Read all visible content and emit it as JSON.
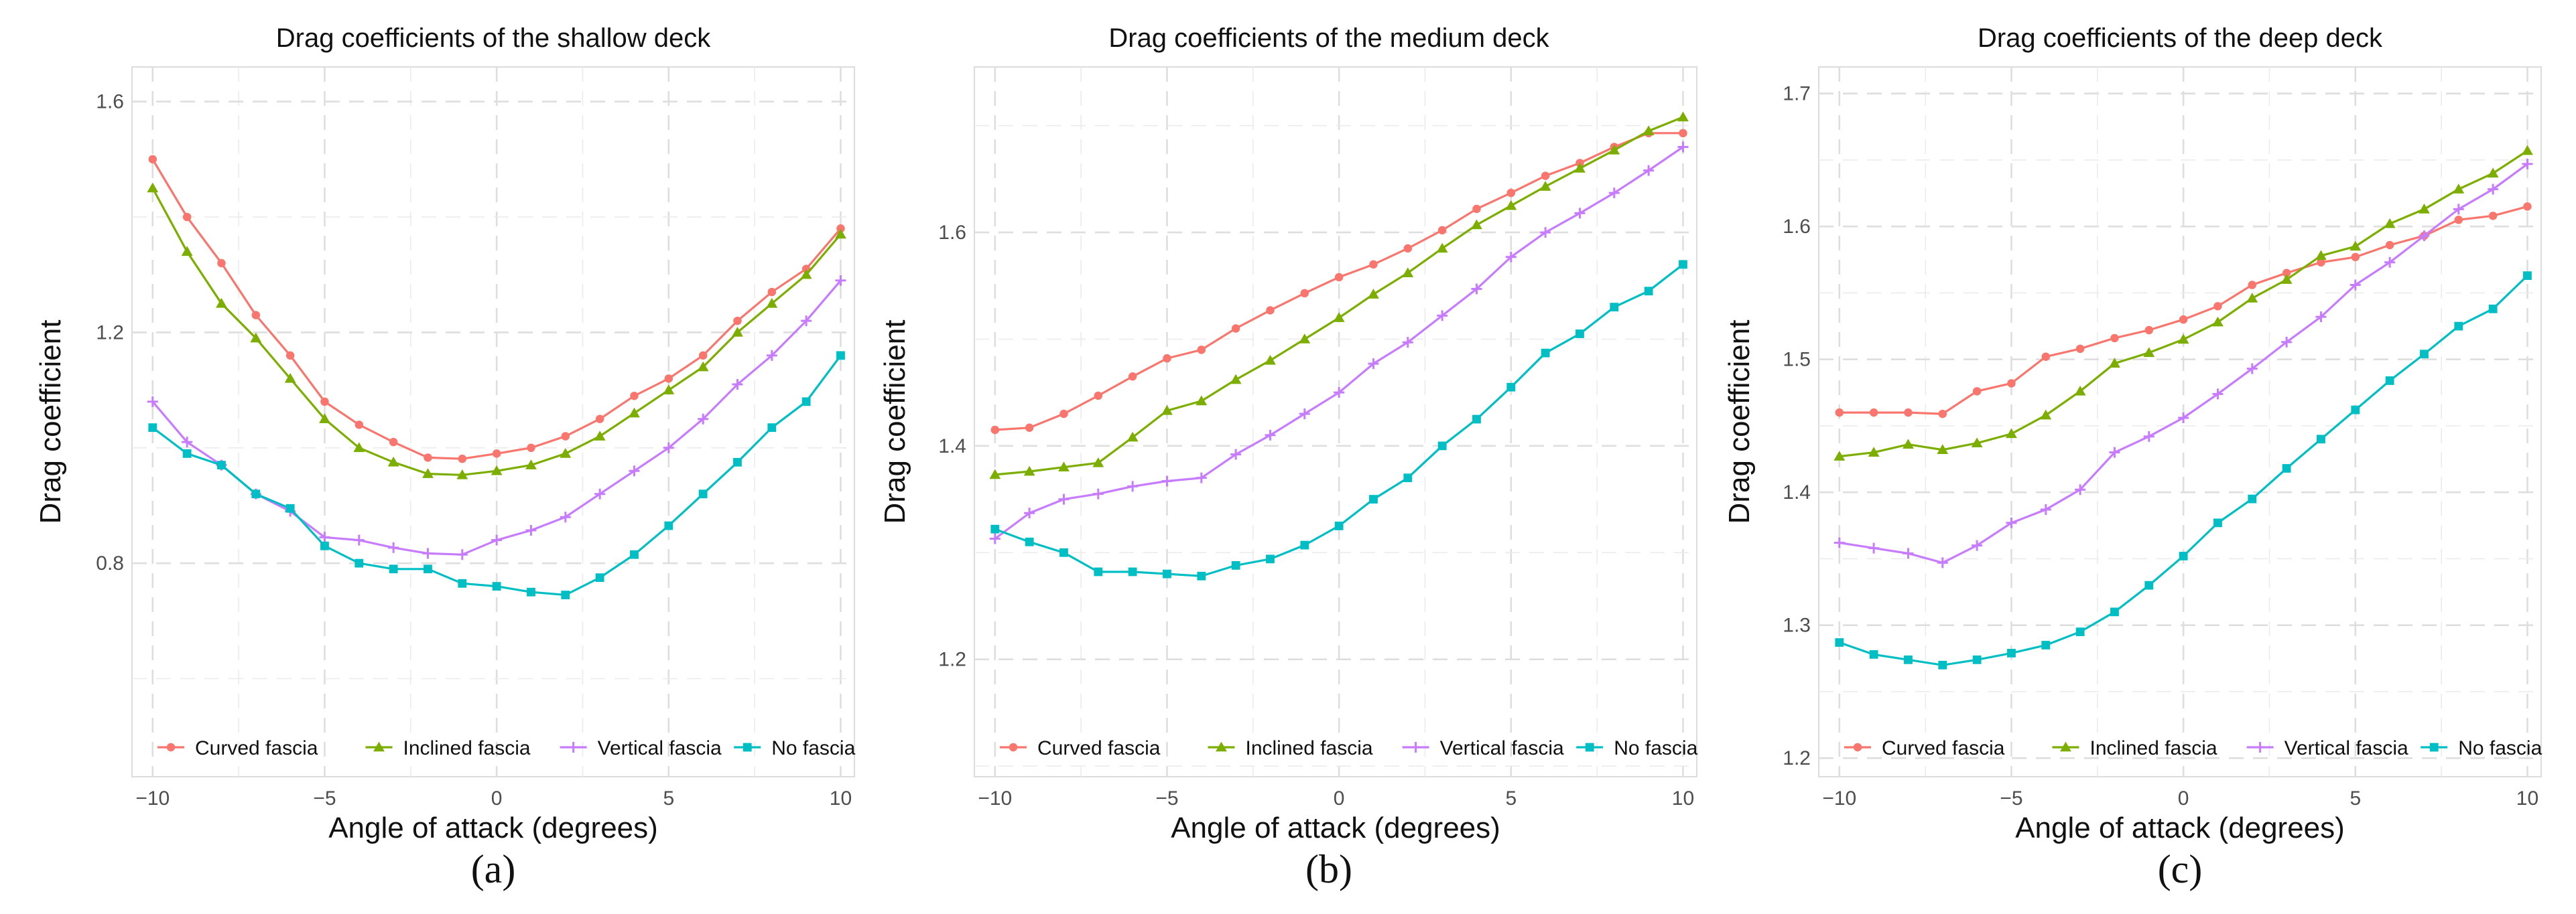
{
  "chart_data": [
    {
      "type": "line",
      "title": "Drag coefficients of the shallow deck",
      "xlabel": "Angle of attack (degrees)",
      "ylabel": "Drag coefficient",
      "sublabel": "(a)",
      "xlim": [
        -10.6,
        10.4
      ],
      "ylim": [
        0.43,
        1.66
      ],
      "xticks": [
        -10,
        -5,
        0,
        5,
        10
      ],
      "xtick_labels": [
        "−10",
        "−5",
        "0",
        "5",
        "10"
      ],
      "yticks": [
        0.8,
        1.2,
        1.6
      ],
      "ytick_labels": [
        "0.8",
        "1.2",
        "1.6"
      ],
      "x": [
        -10,
        -9,
        -8,
        -7,
        -6,
        -5,
        -4,
        -3,
        -2,
        -1,
        0,
        1,
        2,
        3,
        4,
        5,
        6,
        7,
        8,
        9,
        10
      ],
      "series": [
        {
          "name": "Curved fascia",
          "marker": "circle",
          "color": "#F8766D",
          "values": [
            1.5,
            1.4,
            1.32,
            1.23,
            1.16,
            1.08,
            1.04,
            1.01,
            0.983,
            0.981,
            0.99,
            1.0,
            1.02,
            1.05,
            1.09,
            1.12,
            1.16,
            1.22,
            1.27,
            1.31,
            1.38
          ]
        },
        {
          "name": "Inclined fascia",
          "marker": "triangle",
          "color": "#7CAE00",
          "values": [
            1.45,
            1.34,
            1.25,
            1.19,
            1.12,
            1.05,
            1.0,
            0.975,
            0.955,
            0.953,
            0.96,
            0.97,
            0.99,
            1.02,
            1.06,
            1.1,
            1.14,
            1.2,
            1.25,
            1.3,
            1.37
          ]
        },
        {
          "name": "Vertical fascia",
          "marker": "plus",
          "color": "#C77CFF",
          "values": [
            1.08,
            1.01,
            0.97,
            0.92,
            0.89,
            0.845,
            0.84,
            0.827,
            0.817,
            0.815,
            0.84,
            0.857,
            0.88,
            0.92,
            0.96,
            1.0,
            1.05,
            1.11,
            1.16,
            1.22,
            1.29
          ]
        },
        {
          "name": "No fascia",
          "marker": "square",
          "color": "#00BFC4",
          "values": [
            1.035,
            0.99,
            0.97,
            0.92,
            0.895,
            0.83,
            0.8,
            0.79,
            0.79,
            0.765,
            0.76,
            0.75,
            0.745,
            0.775,
            0.815,
            0.865,
            0.92,
            0.975,
            1.035,
            1.08,
            1.16
          ]
        }
      ],
      "legend": {
        "position": "bottom-inside"
      },
      "grid": true
    },
    {
      "type": "line",
      "title": "Drag coefficients of the medium deck",
      "xlabel": "Angle of attack (degrees)",
      "ylabel": "Drag coefficient",
      "sublabel": "(b)",
      "xlim": [
        -10.6,
        10.4
      ],
      "ylim": [
        1.09,
        1.755
      ],
      "xticks": [
        -10,
        -5,
        0,
        5,
        10
      ],
      "xtick_labels": [
        "−10",
        "−5",
        "0",
        "5",
        "10"
      ],
      "yticks": [
        1.2,
        1.4,
        1.6
      ],
      "ytick_labels": [
        "1.2",
        "1.4",
        "1.6"
      ],
      "x": [
        -10,
        -9,
        -8,
        -7,
        -6,
        -5,
        -4,
        -3,
        -2,
        -1,
        0,
        1,
        2,
        3,
        4,
        5,
        6,
        7,
        8,
        9,
        10
      ],
      "series": [
        {
          "name": "Curved fascia",
          "marker": "circle",
          "color": "#F8766D",
          "values": [
            1.415,
            1.417,
            1.43,
            1.447,
            1.465,
            1.482,
            1.49,
            1.51,
            1.527,
            1.543,
            1.558,
            1.57,
            1.585,
            1.602,
            1.622,
            1.637,
            1.653,
            1.665,
            1.68,
            1.693,
            1.693
          ]
        },
        {
          "name": "Inclined fascia",
          "marker": "triangle",
          "color": "#7CAE00",
          "values": [
            1.373,
            1.376,
            1.38,
            1.384,
            1.408,
            1.433,
            1.442,
            1.462,
            1.48,
            1.5,
            1.52,
            1.542,
            1.562,
            1.585,
            1.607,
            1.625,
            1.643,
            1.66,
            1.677,
            1.695,
            1.708
          ]
        },
        {
          "name": "Vertical fascia",
          "marker": "plus",
          "color": "#C77CFF",
          "values": [
            1.313,
            1.337,
            1.35,
            1.355,
            1.362,
            1.367,
            1.37,
            1.392,
            1.41,
            1.43,
            1.45,
            1.477,
            1.497,
            1.522,
            1.547,
            1.577,
            1.6,
            1.618,
            1.637,
            1.658,
            1.68
          ]
        },
        {
          "name": "No fascia",
          "marker": "square",
          "color": "#00BFC4",
          "values": [
            1.322,
            1.31,
            1.3,
            1.282,
            1.282,
            1.28,
            1.278,
            1.288,
            1.294,
            1.307,
            1.325,
            1.35,
            1.37,
            1.4,
            1.425,
            1.455,
            1.487,
            1.505,
            1.53,
            1.545,
            1.57
          ]
        }
      ],
      "legend": {
        "position": "bottom-inside"
      },
      "grid": true
    },
    {
      "type": "line",
      "title": "Drag coefficients of the deep deck",
      "xlabel": "Angle of attack (degrees)",
      "ylabel": "Drag coefficient",
      "sublabel": "(c)",
      "xlim": [
        -10.6,
        10.4
      ],
      "ylim": [
        1.186,
        1.72
      ],
      "xticks": [
        -10,
        -5,
        0,
        5,
        10
      ],
      "xtick_labels": [
        "−10",
        "−5",
        "0",
        "5",
        "10"
      ],
      "yticks": [
        1.2,
        1.3,
        1.4,
        1.5,
        1.6,
        1.7
      ],
      "ytick_labels": [
        "1.2",
        "1.3",
        "1.4",
        "1.5",
        "1.6",
        "1.7"
      ],
      "x": [
        -10,
        -9,
        -8,
        -7,
        -6,
        -5,
        -4,
        -3,
        -2,
        -1,
        0,
        1,
        2,
        3,
        4,
        5,
        6,
        7,
        8,
        9,
        10
      ],
      "series": [
        {
          "name": "Curved fascia",
          "marker": "circle",
          "color": "#F8766D",
          "values": [
            1.46,
            1.46,
            1.46,
            1.459,
            1.476,
            1.482,
            1.502,
            1.508,
            1.516,
            1.522,
            1.53,
            1.54,
            1.556,
            1.565,
            1.573,
            1.577,
            1.586,
            1.593,
            1.605,
            1.608,
            1.615
          ]
        },
        {
          "name": "Inclined fascia",
          "marker": "triangle",
          "color": "#7CAE00",
          "values": [
            1.427,
            1.43,
            1.436,
            1.432,
            1.437,
            1.444,
            1.458,
            1.476,
            1.497,
            1.505,
            1.515,
            1.528,
            1.546,
            1.56,
            1.578,
            1.585,
            1.602,
            1.613,
            1.628,
            1.64,
            1.657
          ]
        },
        {
          "name": "Vertical fascia",
          "marker": "plus",
          "color": "#C77CFF",
          "values": [
            1.362,
            1.358,
            1.354,
            1.347,
            1.36,
            1.377,
            1.387,
            1.402,
            1.43,
            1.442,
            1.456,
            1.474,
            1.493,
            1.513,
            1.532,
            1.556,
            1.573,
            1.593,
            1.613,
            1.628,
            1.647
          ]
        },
        {
          "name": "No fascia",
          "marker": "square",
          "color": "#00BFC4",
          "values": [
            1.287,
            1.278,
            1.274,
            1.27,
            1.274,
            1.279,
            1.285,
            1.295,
            1.31,
            1.33,
            1.352,
            1.377,
            1.395,
            1.418,
            1.44,
            1.462,
            1.484,
            1.504,
            1.525,
            1.538,
            1.563
          ]
        }
      ],
      "legend": {
        "position": "bottom-inside"
      },
      "grid": true
    }
  ]
}
